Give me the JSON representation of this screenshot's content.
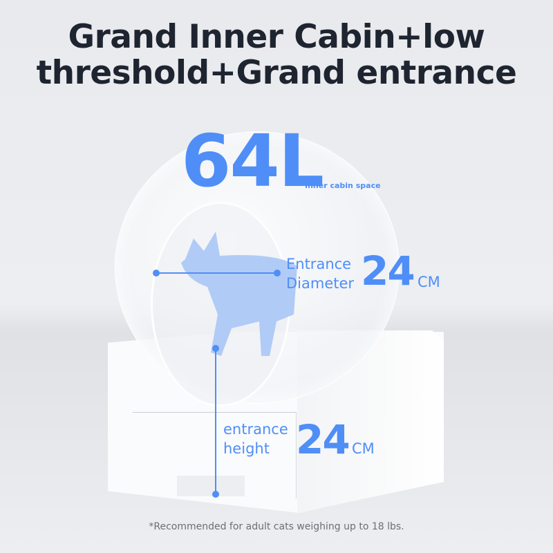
{
  "title": {
    "line1": "Grand Inner Cabin+low",
    "line2": "threshold+Grand entrance"
  },
  "capacity": {
    "value": "64L",
    "label": "Inner cabin space"
  },
  "diameter": {
    "label_line1": "Entrance",
    "label_line2": "Diameter",
    "value": "24",
    "unit": "CM"
  },
  "height": {
    "label_line1": "entrance",
    "label_line2": "height",
    "value": "24",
    "unit": "CM"
  },
  "footnote": "*Recommended for adult cats weighing up to 18 lbs.",
  "colors": {
    "accent": "#4f8ef7",
    "title": "#1e2530",
    "cat": "#a9c6f5"
  }
}
